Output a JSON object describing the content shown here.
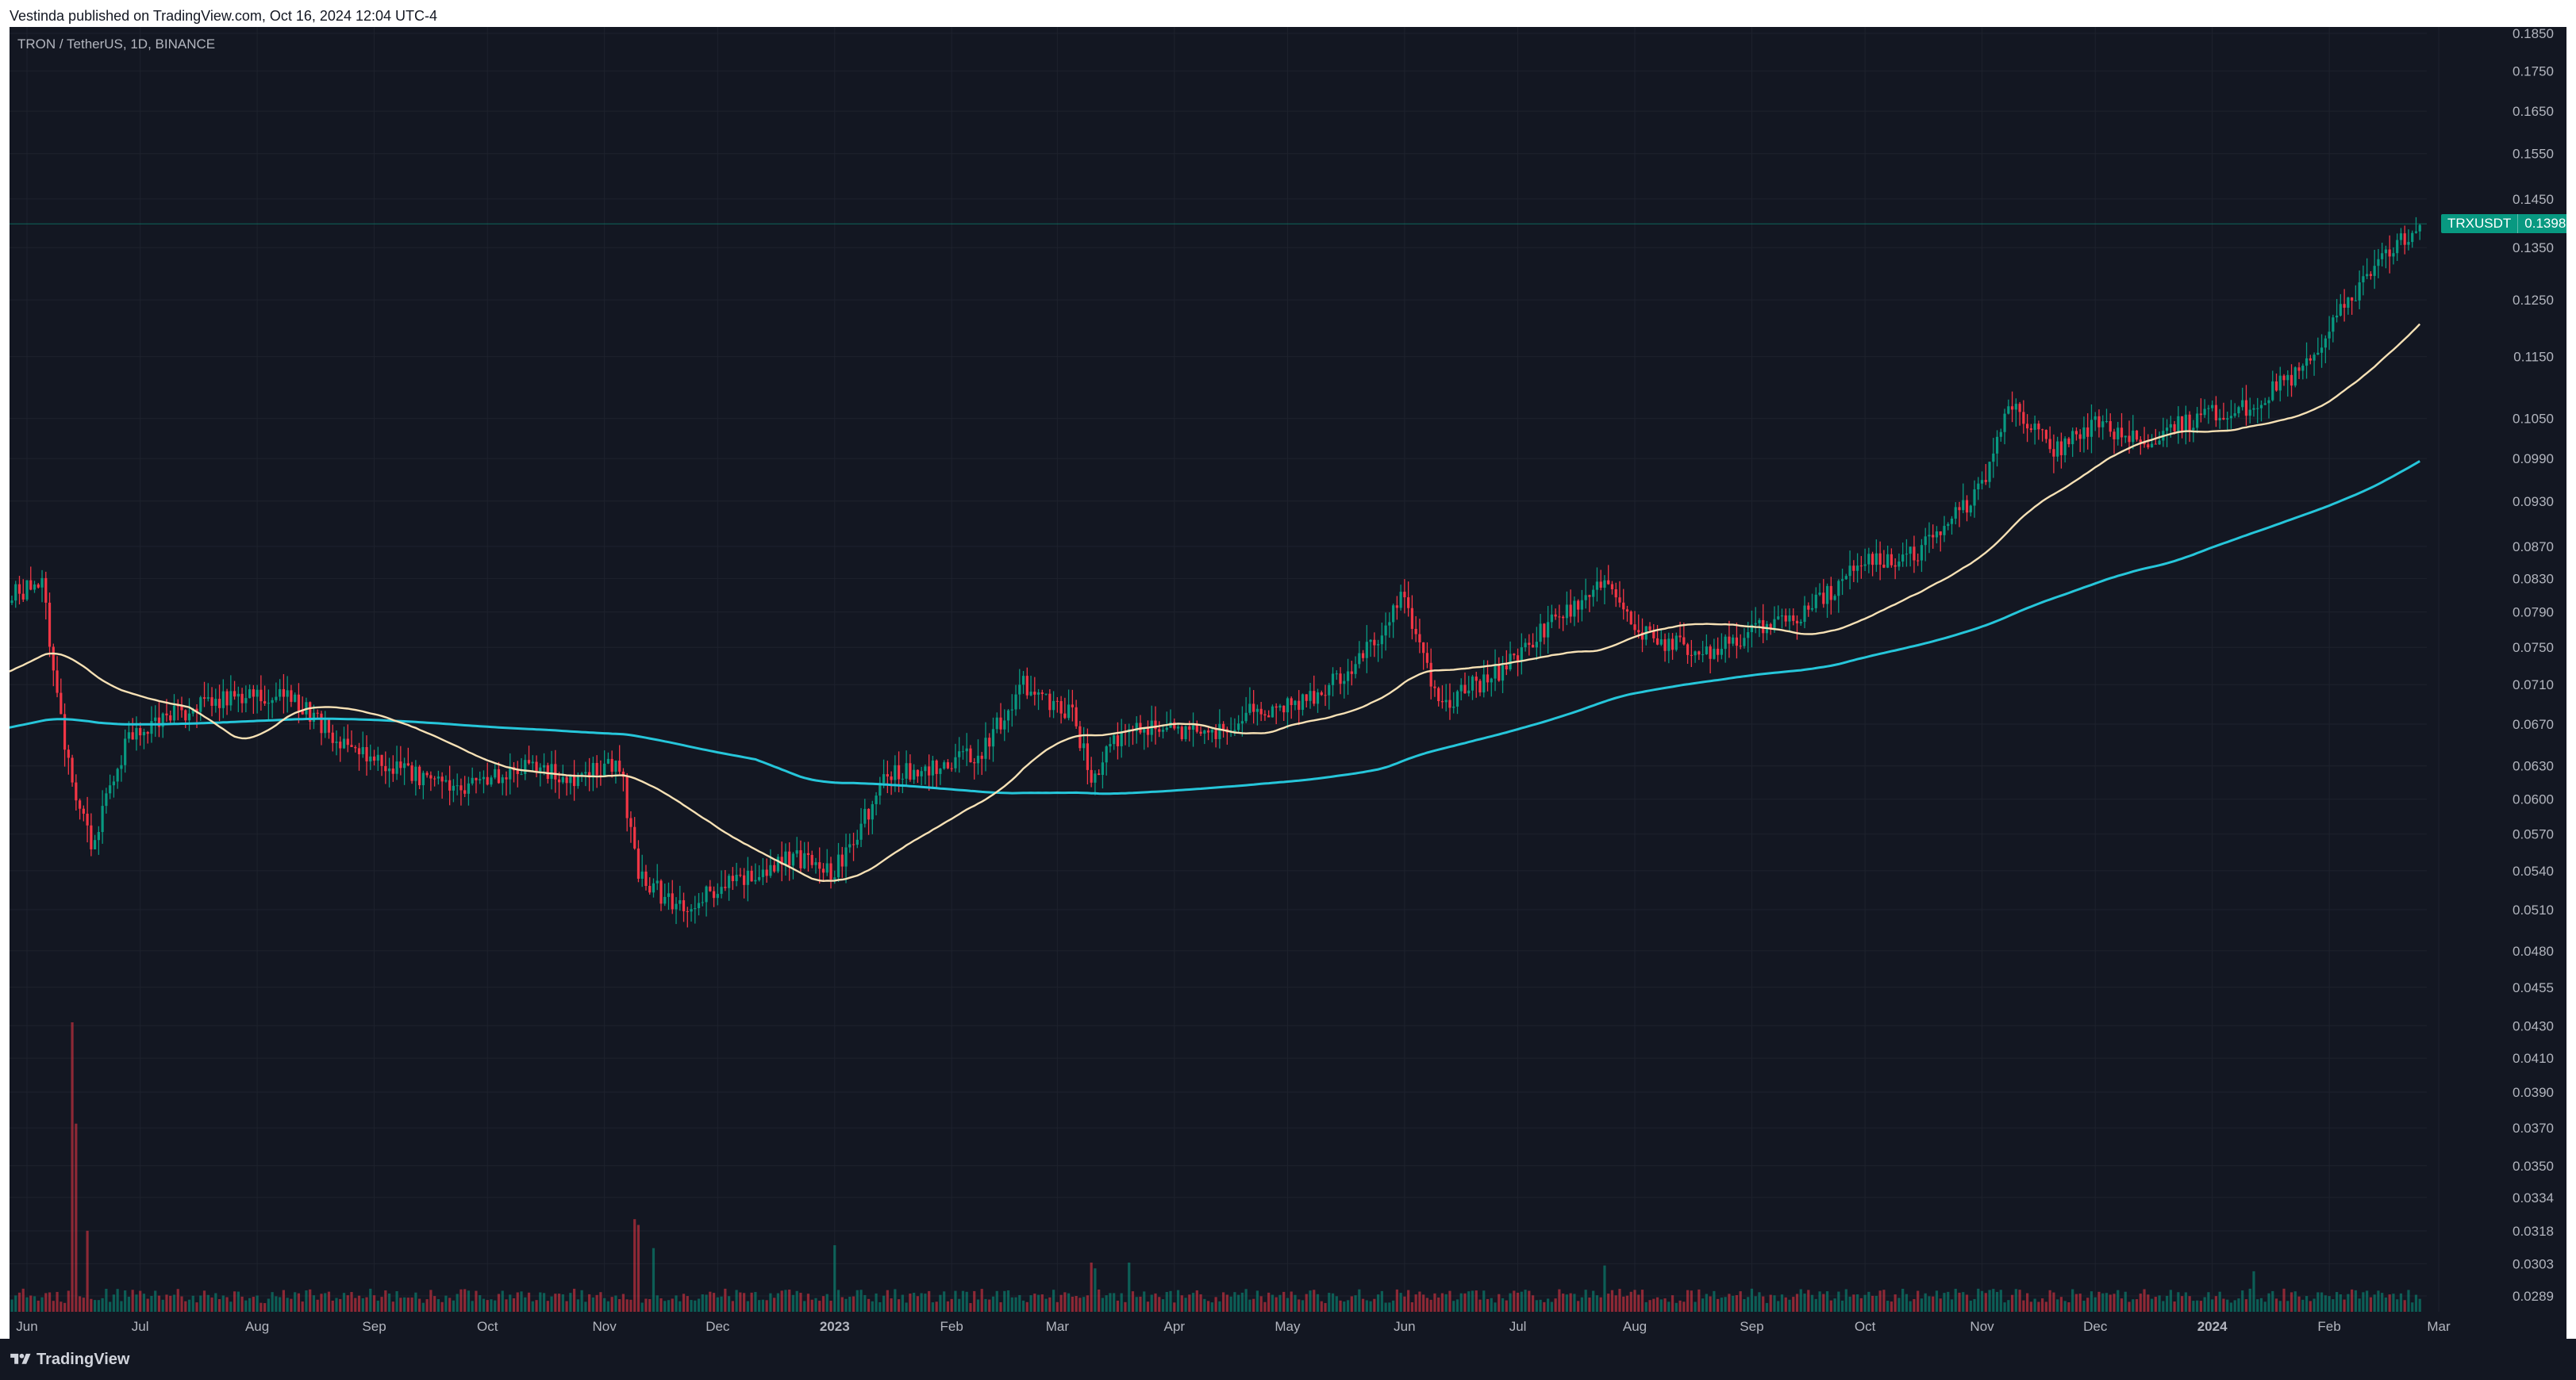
{
  "header": {
    "published_text": "Vestinda published on TradingView.com, Oct 16, 2024 12:04 UTC-4"
  },
  "chart_data": {
    "type": "candlestick",
    "title": "TRON / TetherUS, 1D, BINANCE",
    "symbol": "TRXUSDT",
    "last_price": 0.1398,
    "ylim": [
      0.0275,
      0.19
    ],
    "y_scale": "log",
    "y_ticks": [
      "0.1850",
      "0.1750",
      "0.1650",
      "0.1550",
      "0.1450",
      "0.1350",
      "0.1250",
      "0.1150",
      "0.1050",
      "0.0990",
      "0.0930",
      "0.0870",
      "0.0830",
      "0.0790",
      "0.0750",
      "0.0710",
      "0.0670",
      "0.0630",
      "0.0600",
      "0.0570",
      "0.0540",
      "0.0510",
      "0.0480",
      "0.0455",
      "0.0430",
      "0.0410",
      "0.0390",
      "0.0370",
      "0.0350",
      "0.0334",
      "0.0318",
      "0.0303",
      "0.0289"
    ],
    "x_ticks": [
      {
        "label": "Jun",
        "date": "2022-06-01",
        "bold": false
      },
      {
        "label": "Jul",
        "date": "2022-07-01",
        "bold": false
      },
      {
        "label": "Aug",
        "date": "2022-08-01",
        "bold": false
      },
      {
        "label": "Sep",
        "date": "2022-09-01",
        "bold": false
      },
      {
        "label": "Oct",
        "date": "2022-10-01",
        "bold": false
      },
      {
        "label": "Nov",
        "date": "2022-11-01",
        "bold": false
      },
      {
        "label": "Dec",
        "date": "2022-12-01",
        "bold": false
      },
      {
        "label": "2023",
        "date": "2023-01-01",
        "bold": true
      },
      {
        "label": "Feb",
        "date": "2023-02-01",
        "bold": false
      },
      {
        "label": "Mar",
        "date": "2023-03-01",
        "bold": false
      },
      {
        "label": "Apr",
        "date": "2023-04-01",
        "bold": false
      },
      {
        "label": "May",
        "date": "2023-05-01",
        "bold": false
      },
      {
        "label": "Jun",
        "date": "2023-06-01",
        "bold": false
      },
      {
        "label": "Jul",
        "date": "2023-07-01",
        "bold": false
      },
      {
        "label": "Aug",
        "date": "2023-08-01",
        "bold": false
      },
      {
        "label": "Sep",
        "date": "2023-09-01",
        "bold": false
      },
      {
        "label": "Oct",
        "date": "2023-10-01",
        "bold": false
      },
      {
        "label": "Nov",
        "date": "2023-11-01",
        "bold": false
      },
      {
        "label": "Dec",
        "date": "2023-12-01",
        "bold": false
      },
      {
        "label": "2024",
        "date": "2024-01-01",
        "bold": true
      },
      {
        "label": "Feb",
        "date": "2024-02-01",
        "bold": false
      },
      {
        "label": "Mar",
        "date": "2024-03-01",
        "bold": false
      }
    ],
    "anchors": [
      {
        "date": "2022-05-26",
        "close": 0.081
      },
      {
        "date": "2022-06-05",
        "close": 0.082
      },
      {
        "date": "2022-06-12",
        "close": 0.063
      },
      {
        "date": "2022-06-18",
        "close": 0.056
      },
      {
        "date": "2022-06-28",
        "close": 0.066
      },
      {
        "date": "2022-07-10",
        "close": 0.068
      },
      {
        "date": "2022-07-28",
        "close": 0.07
      },
      {
        "date": "2022-08-10",
        "close": 0.07
      },
      {
        "date": "2022-08-24",
        "close": 0.065
      },
      {
        "date": "2022-09-05",
        "close": 0.063
      },
      {
        "date": "2022-09-22",
        "close": 0.061
      },
      {
        "date": "2022-10-10",
        "close": 0.063
      },
      {
        "date": "2022-10-25",
        "close": 0.062
      },
      {
        "date": "2022-11-05",
        "close": 0.063
      },
      {
        "date": "2022-11-10",
        "close": 0.054
      },
      {
        "date": "2022-11-20",
        "close": 0.051
      },
      {
        "date": "2022-12-05",
        "close": 0.053
      },
      {
        "date": "2022-12-20",
        "close": 0.055
      },
      {
        "date": "2023-01-01",
        "close": 0.054
      },
      {
        "date": "2023-01-15",
        "close": 0.062
      },
      {
        "date": "2023-02-08",
        "close": 0.064
      },
      {
        "date": "2023-02-20",
        "close": 0.071
      },
      {
        "date": "2023-03-05",
        "close": 0.068
      },
      {
        "date": "2023-03-10",
        "close": 0.062
      },
      {
        "date": "2023-03-20",
        "close": 0.067
      },
      {
        "date": "2023-04-10",
        "close": 0.066
      },
      {
        "date": "2023-04-20",
        "close": 0.068
      },
      {
        "date": "2023-05-10",
        "close": 0.07
      },
      {
        "date": "2023-05-25",
        "close": 0.076
      },
      {
        "date": "2023-06-01",
        "close": 0.081
      },
      {
        "date": "2023-06-10",
        "close": 0.069
      },
      {
        "date": "2023-06-25",
        "close": 0.072
      },
      {
        "date": "2023-07-10",
        "close": 0.078
      },
      {
        "date": "2023-07-24",
        "close": 0.082
      },
      {
        "date": "2023-08-01",
        "close": 0.077
      },
      {
        "date": "2023-08-20",
        "close": 0.074
      },
      {
        "date": "2023-09-01",
        "close": 0.077
      },
      {
        "date": "2023-09-15",
        "close": 0.079
      },
      {
        "date": "2023-10-01",
        "close": 0.085
      },
      {
        "date": "2023-10-15",
        "close": 0.086
      },
      {
        "date": "2023-11-01",
        "close": 0.095
      },
      {
        "date": "2023-11-08",
        "close": 0.108
      },
      {
        "date": "2023-11-20",
        "close": 0.1
      },
      {
        "date": "2023-12-01",
        "close": 0.104
      },
      {
        "date": "2023-12-15",
        "close": 0.102
      },
      {
        "date": "2024-01-01",
        "close": 0.106
      },
      {
        "date": "2024-01-12",
        "close": 0.107
      },
      {
        "date": "2024-01-25",
        "close": 0.113
      },
      {
        "date": "2024-02-05",
        "close": 0.124
      },
      {
        "date": "2024-02-15",
        "close": 0.133
      },
      {
        "date": "2024-02-25",
        "close": 0.1398
      }
    ],
    "volume_spikes": [
      {
        "date": "2022-06-13",
        "rel": 1.0
      },
      {
        "date": "2022-06-14",
        "rel": 0.65
      },
      {
        "date": "2022-06-17",
        "rel": 0.28
      },
      {
        "date": "2022-11-09",
        "rel": 0.32
      },
      {
        "date": "2022-11-10",
        "rel": 0.3
      },
      {
        "date": "2022-11-14",
        "rel": 0.22
      },
      {
        "date": "2023-01-01",
        "rel": 0.23
      },
      {
        "date": "2023-03-10",
        "rel": 0.17
      },
      {
        "date": "2023-03-11",
        "rel": 0.15
      },
      {
        "date": "2023-03-20",
        "rel": 0.17
      },
      {
        "date": "2023-07-24",
        "rel": 0.16
      },
      {
        "date": "2024-01-12",
        "rel": 0.14
      }
    ],
    "series": [
      {
        "name": "MA 50",
        "color": "#f7e1b5",
        "type": "line"
      },
      {
        "name": "MA 200",
        "color": "#26c6da",
        "type": "line"
      }
    ],
    "colors": {
      "up": "#089981",
      "down": "#f23645",
      "background": "#131722",
      "grid": "#1e222d",
      "axis_text": "#b2b5be",
      "last_price_line": "#089981"
    }
  },
  "footer": {
    "brand": "TradingView"
  }
}
